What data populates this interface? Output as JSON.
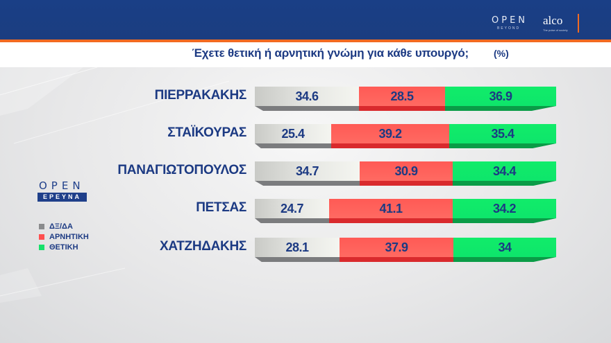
{
  "header": {
    "brand_open": "OPEN",
    "brand_open_sub": "BEYOND",
    "brand_alco": "alco",
    "brand_alco_sub": "The pulse of society"
  },
  "title": {
    "question": "Έχετε θετική ή αρνητική γνώμη για κάθε υπουργό;",
    "unit": "(%)"
  },
  "side_logo": {
    "word": "OPEN",
    "band": "ΕΡΕΥΝΑ"
  },
  "legend": [
    {
      "label": "ΔΞ/ΔΑ",
      "color": "#8a8b8d"
    },
    {
      "label": "ΑΡΝΗΤΙΚΗ",
      "color": "#ff4f4f"
    },
    {
      "label": "ΘΕΤΙΚΗ",
      "color": "#16e06a"
    }
  ],
  "chart_data": {
    "type": "bar",
    "orientation": "horizontal-stacked",
    "title": "Έχετε θετική ή αρνητική γνώμη για κάθε υπουργό; (%)",
    "categories": [
      "ΠΙΕΡΡΑΚΑΚΗΣ",
      "ΣΤΑΪΚΟΥΡΑΣ",
      "ΠΑΝΑΓΙΩΤΟΠΟΥΛΟΣ",
      "ΠΕΤΣΑΣ",
      "ΧΑΤΖΗΔΑΚΗΣ"
    ],
    "series": [
      {
        "name": "ΔΞ/ΔΑ",
        "color": "#8a8b8d",
        "values": [
          34.6,
          25.4,
          34.7,
          24.7,
          28.1
        ]
      },
      {
        "name": "ΑΡΝΗΤΙΚΗ",
        "color": "#ff4f4f",
        "values": [
          28.5,
          39.2,
          30.9,
          41.1,
          37.9
        ]
      },
      {
        "name": "ΘΕΤΙΚΗ",
        "color": "#16e06a",
        "values": [
          36.9,
          35.4,
          34.4,
          34.2,
          34
        ]
      }
    ],
    "value_labels": [
      [
        "34.6",
        "28.5",
        "36.9"
      ],
      [
        "25.4",
        "39.2",
        "35.4"
      ],
      [
        "34.7",
        "30.9",
        "34.4"
      ],
      [
        "24.7",
        "41.1",
        "34.2"
      ],
      [
        "28.1",
        "37.9",
        "34"
      ]
    ],
    "xlabel": "",
    "ylabel": "",
    "xlim": [
      0,
      100
    ],
    "grid": false,
    "legend_position": "left"
  }
}
